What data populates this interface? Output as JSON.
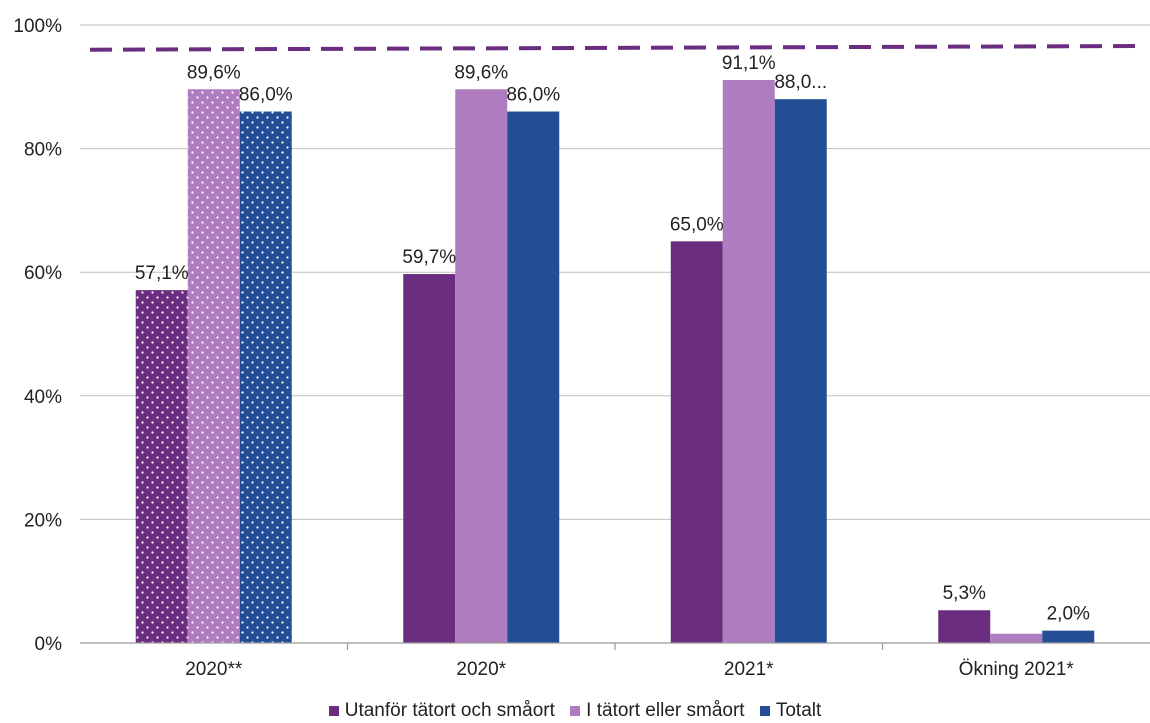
{
  "chart_data": {
    "type": "bar",
    "categories": [
      "2020**",
      "2020*",
      "2021*",
      "Ökning 2021*"
    ],
    "series": [
      {
        "name": "Utanför tätort och småort",
        "values": [
          57.1,
          59.7,
          65.0,
          5.3
        ],
        "labels": [
          "57,1%",
          "59,7%",
          "65,0%",
          "5,3%"
        ],
        "color": "#6b2d80"
      },
      {
        "name": "I tätort eller småort",
        "values": [
          89.6,
          89.6,
          91.1,
          1.5
        ],
        "labels": [
          "89,6%",
          "89,6%",
          "91,1%",
          ""
        ],
        "color": "#b07cc0"
      },
      {
        "name": "Totalt",
        "values": [
          86.0,
          86.0,
          88.0,
          2.0
        ],
        "labels": [
          "86,0%",
          "86,0%",
          "88,0...",
          "2,0%"
        ],
        "color": "#234e96"
      }
    ],
    "dotted_categories": [
      "2020**"
    ],
    "reference_line": {
      "style": "dashed",
      "color": "#6b2d80",
      "y_start": 96,
      "y_end": 96.6
    },
    "yticks": [
      "0%",
      "20%",
      "40%",
      "60%",
      "80%",
      "100%"
    ],
    "ylim": [
      0,
      100
    ],
    "grid": true,
    "legend_position": "bottom",
    "title": "",
    "xlabel": "",
    "ylabel": ""
  }
}
